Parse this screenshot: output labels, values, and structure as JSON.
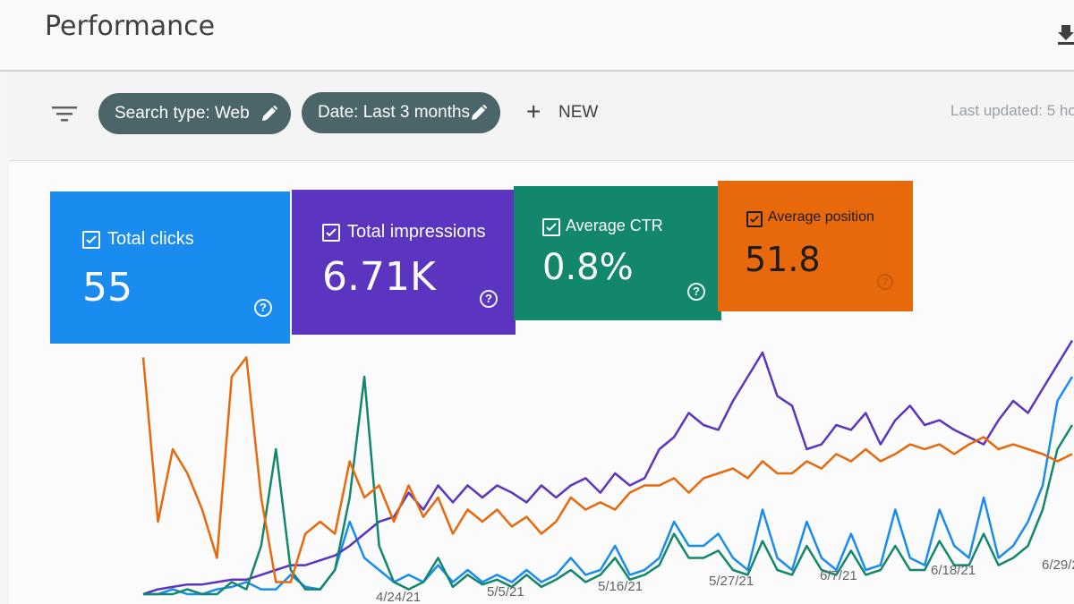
{
  "header": {
    "title": "Performance"
  },
  "filters": {
    "search_type": "Search type: Web",
    "date": "Date: Last 3 months",
    "new_label": "NEW",
    "last_updated": "Last updated: 5 ho"
  },
  "cards": [
    {
      "label": "Total clicks",
      "value": "55",
      "color": "#1a8cf0"
    },
    {
      "label": "Total impressions",
      "value": "6.71K",
      "color": "#5b34bf"
    },
    {
      "label": "Average CTR",
      "value": "0.8%",
      "color": "#12876c"
    },
    {
      "label": "Average position",
      "value": "51.8",
      "color": "#e8680c"
    }
  ],
  "icons": {
    "filter": "filter-icon",
    "edit": "pencil-icon",
    "add": "plus-icon",
    "help": "help-icon",
    "download": "download-icon",
    "checkbox": "checkbox-checked-icon"
  },
  "chart_data": {
    "type": "line",
    "x_ticks": [
      "4/24/21",
      "5/5/21",
      "5/16/21",
      "5/27/21",
      "6/7/21",
      "6/18/21",
      "6/29/21"
    ],
    "series": [
      {
        "name": "Total clicks",
        "color": "#1a8cf0",
        "values": [
          0,
          0,
          0.02,
          0,
          0,
          0.02,
          0.03,
          0.05,
          0.02,
          0.02,
          0.08,
          0.03,
          0.02,
          0.1,
          0.3,
          0.15,
          0.1,
          0.05,
          0.08,
          0.05,
          0.12,
          0.05,
          0.1,
          0.05,
          0.08,
          0.05,
          0.1,
          0.05,
          0.08,
          0.15,
          0.08,
          0.1,
          0.2,
          0.08,
          0.1,
          0.15,
          0.3,
          0.2,
          0.2,
          0.25,
          0.15,
          0.1,
          0.35,
          0.15,
          0.1,
          0.3,
          0.15,
          0.1,
          0.25,
          0.1,
          0.12,
          0.35,
          0.15,
          0.12,
          0.35,
          0.2,
          0.15,
          0.4,
          0.15,
          0.2,
          0.3,
          0.45,
          0.8,
          0.9
        ]
      },
      {
        "name": "Total impressions",
        "color": "#5b34bf",
        "values": [
          0,
          0.02,
          0.03,
          0.04,
          0.04,
          0.05,
          0.06,
          0.06,
          0.08,
          0.1,
          0.12,
          0.12,
          0.14,
          0.16,
          0.2,
          0.25,
          0.3,
          0.32,
          0.42,
          0.35,
          0.45,
          0.38,
          0.45,
          0.4,
          0.45,
          0.42,
          0.38,
          0.45,
          0.4,
          0.45,
          0.48,
          0.42,
          0.5,
          0.45,
          0.48,
          0.6,
          0.65,
          0.75,
          0.7,
          0.68,
          0.8,
          0.9,
          1.0,
          0.82,
          0.78,
          0.6,
          0.62,
          0.7,
          0.68,
          0.75,
          0.62,
          0.72,
          0.78,
          0.7,
          0.72,
          0.68,
          0.65,
          0.62,
          0.72,
          0.8,
          0.75,
          0.85,
          0.95,
          1.05
        ]
      },
      {
        "name": "Average CTR",
        "color": "#12876c",
        "values": [
          0,
          0,
          0,
          0.02,
          0,
          0,
          0.05,
          0.02,
          0.2,
          0.6,
          0.1,
          0.02,
          0.02,
          0.1,
          0.4,
          0.9,
          0.2,
          0.05,
          0.02,
          0.05,
          0.15,
          0.03,
          0.08,
          0.04,
          0.06,
          0.03,
          0.08,
          0.03,
          0.06,
          0.1,
          0.05,
          0.08,
          0.15,
          0.06,
          0.08,
          0.12,
          0.25,
          0.15,
          0.15,
          0.18,
          0.1,
          0.08,
          0.22,
          0.1,
          0.08,
          0.2,
          0.1,
          0.08,
          0.18,
          0.08,
          0.1,
          0.2,
          0.1,
          0.1,
          0.22,
          0.12,
          0.12,
          0.25,
          0.12,
          0.15,
          0.2,
          0.35,
          0.6,
          0.7
        ]
      },
      {
        "name": "Average position",
        "color": "#e8680c",
        "values": [
          0.98,
          0.3,
          0.6,
          0.5,
          0.35,
          0.15,
          0.9,
          0.98,
          0.4,
          0.05,
          0.05,
          0.25,
          0.3,
          0.25,
          0.55,
          0.4,
          0.45,
          0.3,
          0.45,
          0.32,
          0.4,
          0.25,
          0.35,
          0.3,
          0.35,
          0.28,
          0.32,
          0.25,
          0.3,
          0.4,
          0.35,
          0.38,
          0.35,
          0.42,
          0.45,
          0.45,
          0.48,
          0.42,
          0.48,
          0.5,
          0.52,
          0.48,
          0.55,
          0.5,
          0.5,
          0.55,
          0.52,
          0.58,
          0.55,
          0.6,
          0.55,
          0.58,
          0.62,
          0.6,
          0.62,
          0.58,
          0.62,
          0.65,
          0.6,
          0.62,
          0.6,
          0.58,
          0.55,
          0.58
        ]
      }
    ],
    "grid": false,
    "legend": "none"
  }
}
